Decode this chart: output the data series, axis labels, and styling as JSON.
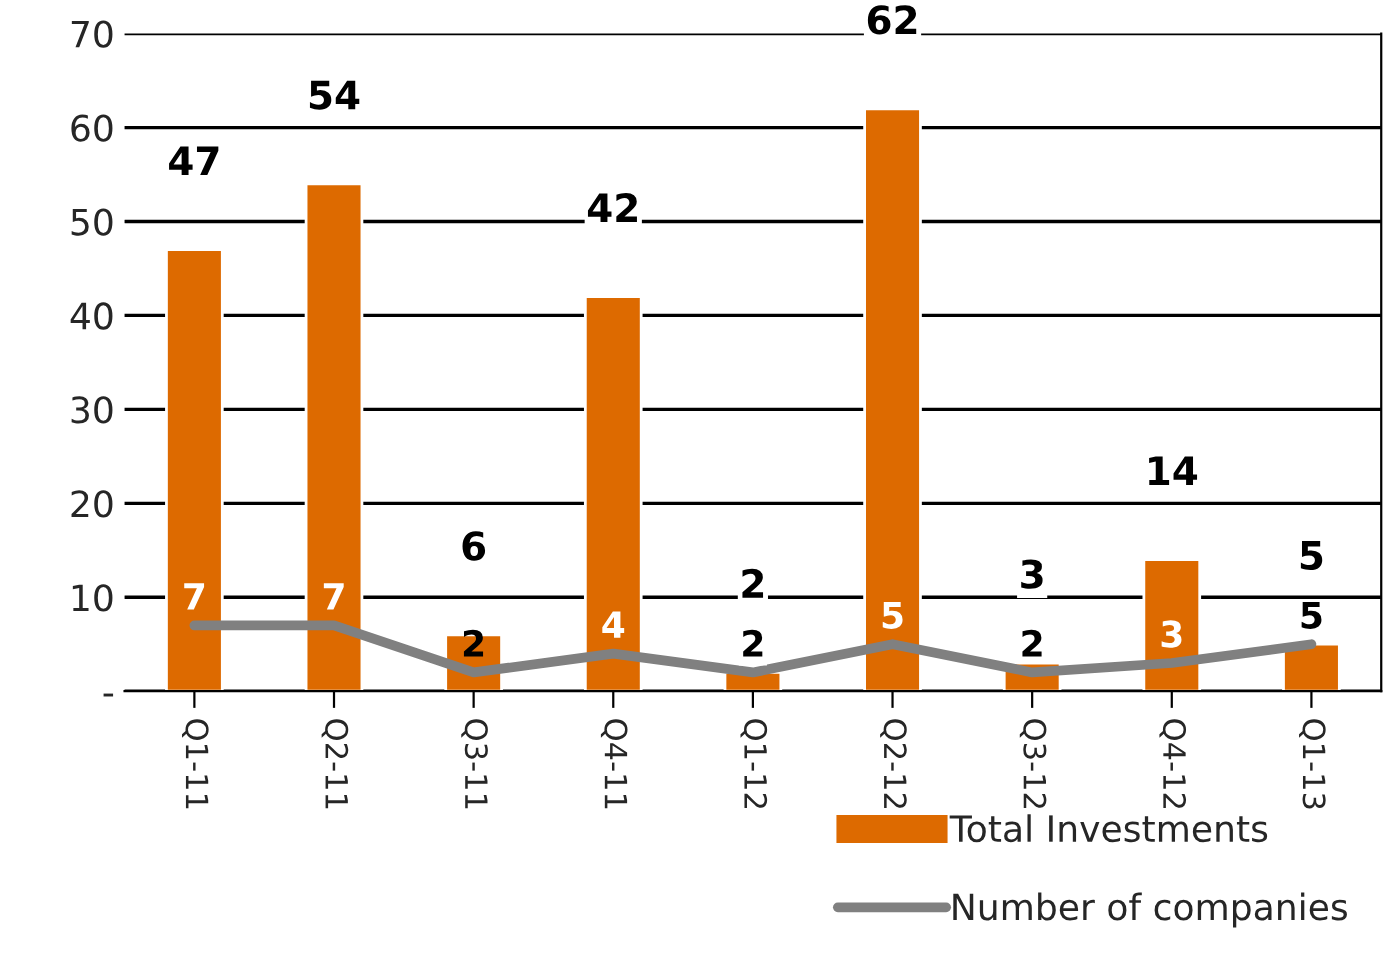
{
  "chart_data": {
    "type": "bar",
    "categories": [
      "Q1-11",
      "Q2-11",
      "Q3-11",
      "Q4-11",
      "Q1-12",
      "Q2-12",
      "Q3-12",
      "Q4-12",
      "Q1-13"
    ],
    "series": [
      {
        "name": "Total Investments",
        "color": "#dd6a00",
        "values": [
          47,
          54,
          6,
          42,
          2,
          62,
          3,
          14,
          5
        ]
      },
      {
        "name": "Number of companies",
        "type": "line",
        "color": "#808080",
        "values": [
          7,
          7,
          2,
          4,
          2,
          5,
          2,
          3,
          5
        ]
      }
    ],
    "ylim": [
      0,
      70
    ],
    "yticks": [
      {
        "value": 0,
        "label": "-"
      },
      10,
      20,
      30,
      40,
      50,
      60,
      70
    ],
    "grid": "y",
    "legend": "bottom right",
    "data_labels": true,
    "marker": "none",
    "line_style": "solid"
  }
}
